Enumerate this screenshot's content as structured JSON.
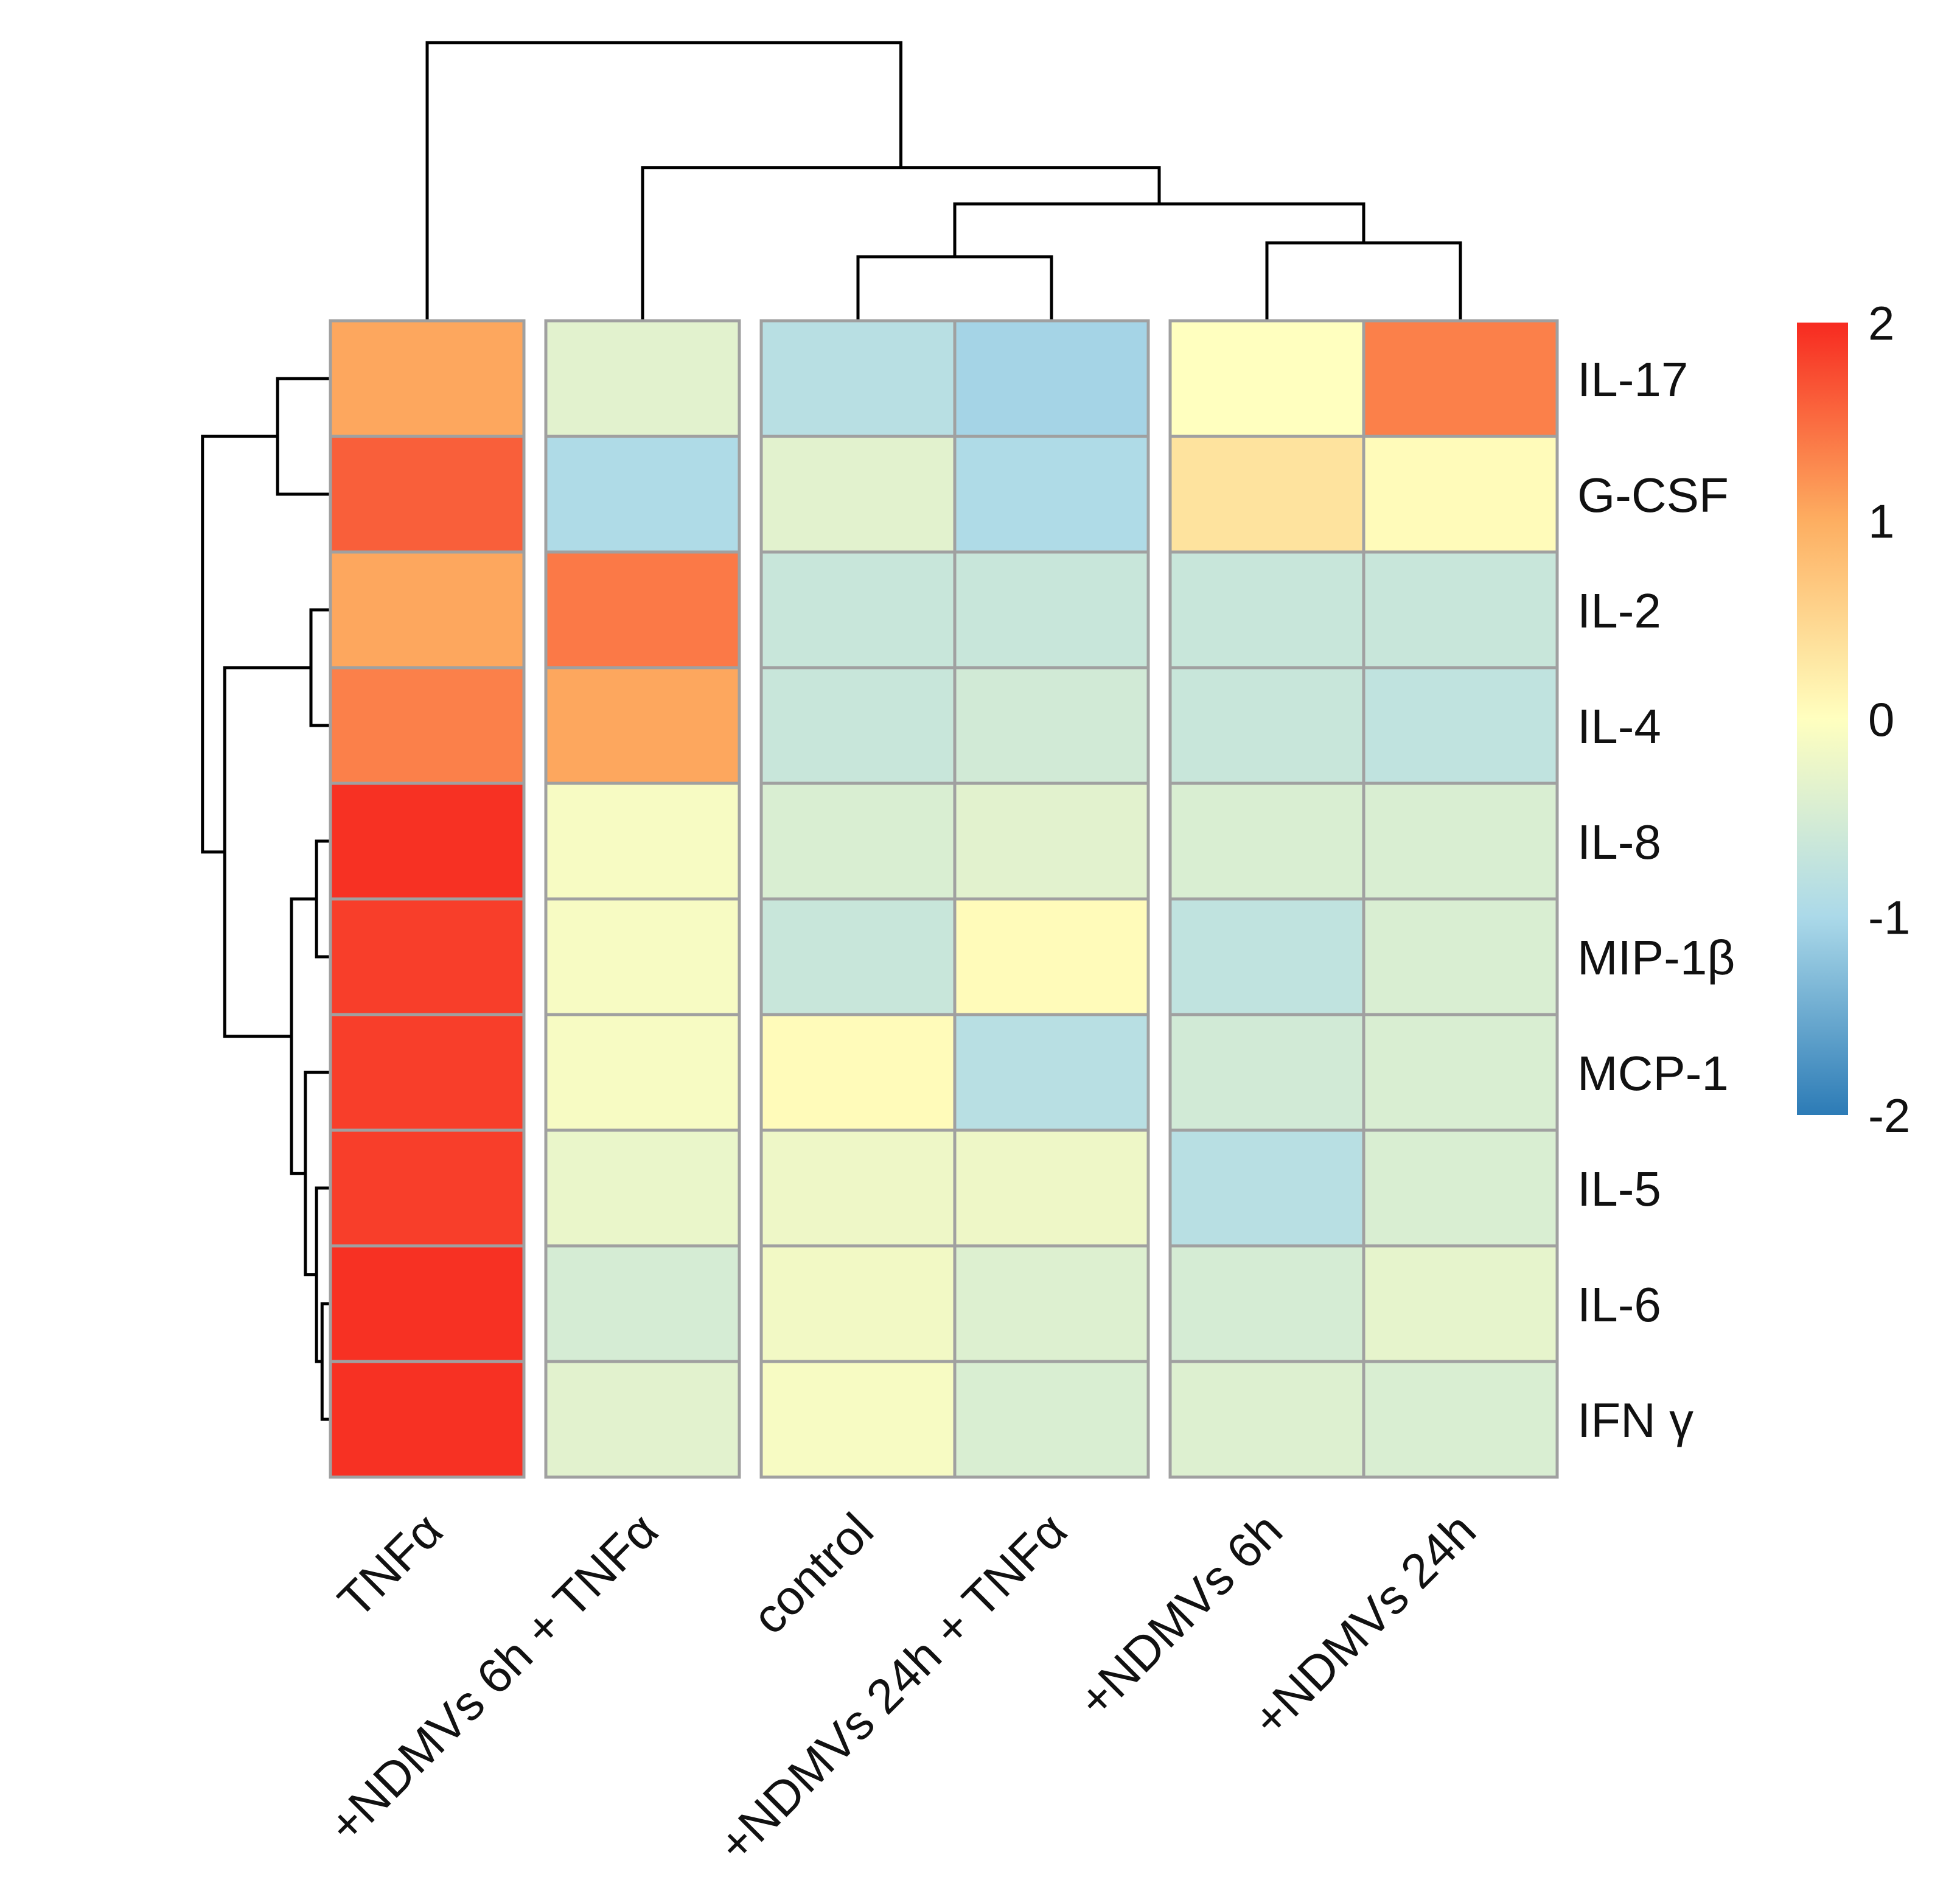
{
  "chart_data": {
    "type": "heatmap",
    "title": "",
    "columns": [
      "TNFα",
      "+NDMVs 6h + TNFα",
      "control",
      "+NDMVs 24h + TNFα",
      "+NDMVs 6h",
      "+NDMVs 24h"
    ],
    "rows": [
      "IL-17",
      "G-CSF",
      "IL-2",
      "IL-4",
      "IL-8",
      "MIP-1β",
      "MCP-1",
      "IL-5",
      "IL-6",
      "IFN γ"
    ],
    "values": [
      [
        1.05,
        -0.35,
        -0.85,
        -1.05,
        0.0,
        1.35
      ],
      [
        1.6,
        -0.95,
        -0.35,
        -0.95,
        0.35,
        0.05
      ],
      [
        1.05,
        1.4,
        -0.65,
        -0.65,
        -0.65,
        -0.65
      ],
      [
        1.35,
        1.05,
        -0.65,
        -0.55,
        -0.65,
        -0.75
      ],
      [
        1.95,
        -0.1,
        -0.45,
        -0.35,
        -0.45,
        -0.45
      ],
      [
        1.85,
        -0.1,
        -0.65,
        0.05,
        -0.75,
        -0.45
      ],
      [
        1.85,
        -0.1,
        0.05,
        -0.85,
        -0.55,
        -0.45
      ],
      [
        1.85,
        -0.25,
        -0.2,
        -0.2,
        -0.85,
        -0.45
      ],
      [
        1.95,
        -0.5,
        -0.15,
        -0.4,
        -0.5,
        -0.3
      ],
      [
        1.95,
        -0.35,
        -0.1,
        -0.45,
        -0.4,
        -0.45
      ]
    ],
    "column_gaps_after": [
      0,
      1,
      3
    ],
    "color_scale": {
      "min": -2,
      "max": 2,
      "ticks": [
        2,
        1,
        0,
        -1,
        -2
      ],
      "tick_labels": [
        "2",
        "1",
        "0",
        "-1",
        "-2"
      ],
      "colors": [
        "#2c7bb6",
        "#abd9e9",
        "#ffffbf",
        "#fdae61",
        "#f72a20"
      ]
    },
    "column_dendrogram": {
      "merges": [
        [
          2,
          3
        ],
        [
          4,
          5
        ],
        [
          -1,
          -2
        ],
        [
          1,
          -3
        ],
        [
          0,
          -4
        ]
      ],
      "heights": [
        0.23,
        0.28,
        0.42,
        0.55,
        1.0
      ]
    },
    "row_dendrogram": {
      "merges": [
        [
          0,
          1
        ],
        [
          2,
          3
        ],
        [
          8,
          9
        ],
        [
          7,
          -3
        ],
        [
          4,
          5
        ],
        [
          6,
          -4
        ],
        [
          -5,
          -6
        ],
        [
          -2,
          -7
        ],
        [
          -1,
          -8
        ]
      ],
      "heights": [
        0.19,
        0.07,
        0.03,
        0.05,
        0.05,
        0.09,
        0.14,
        0.38,
        0.46
      ]
    }
  }
}
